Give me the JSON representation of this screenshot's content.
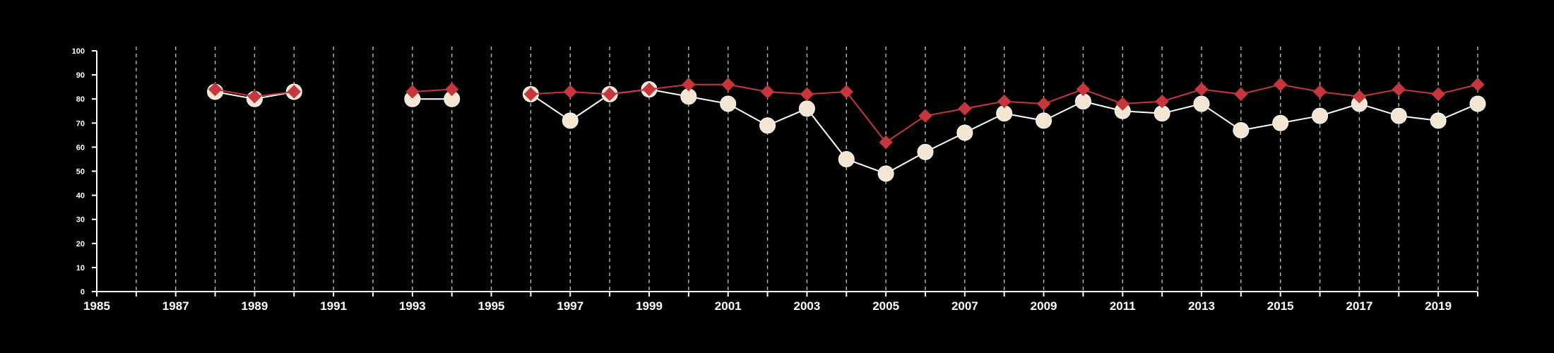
{
  "chart_data": {
    "type": "line",
    "title": "",
    "xlabel": "",
    "ylabel": "",
    "xlim": [
      1985,
      2020
    ],
    "ylim": [
      0,
      100
    ],
    "grid": "vertical dashed lines at every year",
    "legend": "none",
    "x_ticks": [
      1985,
      1987,
      1989,
      1991,
      1993,
      1995,
      1997,
      1999,
      2001,
      2003,
      2005,
      2007,
      2009,
      2011,
      2013,
      2015,
      2017,
      2019
    ],
    "y_ticks": [
      0,
      10,
      20,
      30,
      40,
      50,
      60,
      70,
      80,
      90,
      100
    ],
    "series": [
      {
        "marker": "circle",
        "color": "#ffffff",
        "marker_fill": "#f5e6d3",
        "segments": [
          {
            "x": [
              1988,
              1989,
              1990
            ],
            "y": [
              83,
              80,
              83
            ]
          },
          {
            "x": [
              1993,
              1994
            ],
            "y": [
              80,
              80
            ]
          },
          {
            "x": [
              1996,
              1997,
              1998,
              1999,
              2000,
              2001,
              2002,
              2003,
              2004,
              2005,
              2006,
              2007,
              2008,
              2009,
              2010,
              2011,
              2012,
              2013,
              2014,
              2015,
              2016,
              2017,
              2018,
              2019,
              2020
            ],
            "y": [
              82,
              71,
              82,
              84,
              81,
              78,
              69,
              76,
              55,
              49,
              58,
              66,
              74,
              71,
              79,
              75,
              74,
              78,
              67,
              70,
              73,
              78,
              73,
              71,
              78
            ]
          }
        ]
      },
      {
        "marker": "diamond",
        "color": "#c8363d",
        "marker_fill": "#c8363d",
        "segments": [
          {
            "x": [
              1988,
              1989,
              1990
            ],
            "y": [
              84,
              81,
              83
            ]
          },
          {
            "x": [
              1993,
              1994
            ],
            "y": [
              83,
              84
            ]
          },
          {
            "x": [
              1996,
              1997,
              1998,
              1999,
              2000,
              2001,
              2002,
              2003,
              2004,
              2005,
              2006,
              2007,
              2008,
              2009,
              2010,
              2011,
              2012,
              2013,
              2014,
              2015,
              2016,
              2017,
              2018,
              2019,
              2020
            ],
            "y": [
              82,
              83,
              82,
              84,
              86,
              86,
              83,
              82,
              83,
              62,
              73,
              76,
              79,
              78,
              84,
              78,
              79,
              84,
              82,
              86,
              83,
              81,
              84,
              82,
              86
            ]
          }
        ]
      }
    ]
  },
  "colors": {
    "background": "#000000",
    "axis": "#ffffff",
    "grid": "#bbbbbb",
    "series_1_line": "#ffffff",
    "series_1_marker": "#f5e6d3",
    "series_2": "#c8363d"
  }
}
